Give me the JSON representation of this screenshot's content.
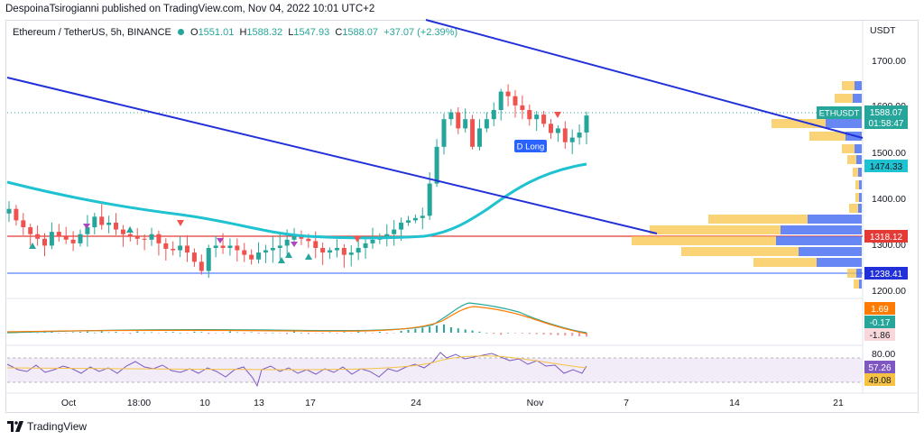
{
  "header": {
    "publisher_line": "DespoinaTsirogianni published on TradingView.com, Nov 04, 2022 10:01 UTC+2"
  },
  "legend": {
    "symbol": "Ethereum / TetherUS, 5h, BINANCE",
    "open_label": "O",
    "open": "1551.01",
    "high_label": "H",
    "high": "1588.32",
    "low_label": "L",
    "low": "1547.93",
    "close_label": "C",
    "close": "1588.07",
    "change": "+37.07 (+2.39%)"
  },
  "price_axis": {
    "currency": "USDT",
    "ticks": [
      "1700.00",
      "1600.00",
      "1500.00",
      "1400.00",
      "1300.00",
      "1200.00"
    ]
  },
  "price_badges": {
    "symbol_tag": "ETHUSDT",
    "last_price": "1588.07",
    "countdown": "01:58:47",
    "ma_value": "1474.33",
    "red_level": "1318.12",
    "blue_level": "1238.41"
  },
  "macd_badges": [
    "1.69",
    "-0.17",
    "-1.86"
  ],
  "rsi_badges": {
    "level": "80.00",
    "rsi": "57.26",
    "rsi_ma": "49.08"
  },
  "time_axis": [
    "Oct",
    "18:00",
    "10",
    "13",
    "17",
    "24",
    "Nov",
    "7",
    "14",
    "21"
  ],
  "annotation": "D Long",
  "footer": {
    "brand": "TradingView"
  },
  "colors": {
    "up": "#26a69a",
    "down": "#ef5350",
    "ma": "#1ec2d1",
    "trendline": "#2130d9",
    "red_level": "#e53935",
    "blue_level": "#2962ff",
    "macd": "#26a69a",
    "signal": "#ff7a00",
    "rsi": "#7e57c2",
    "rsi_ma": "#f5c242",
    "vp_up": "#4b72f2",
    "vp_down": "#f9c44a"
  },
  "chart_data": {
    "type": "candlestick",
    "symbol": "Ethereum / TetherUS",
    "interval": "5h",
    "ylim": [
      1185,
      1745
    ],
    "x": [
      "Oct",
      "18:00",
      "10",
      "13",
      "17",
      "24",
      "Nov",
      "7",
      "14",
      "21"
    ],
    "close_series": [
      1385,
      1360,
      1345,
      1330,
      1320,
      1305,
      1335,
      1325,
      1318,
      1310,
      1330,
      1345,
      1368,
      1350,
      1355,
      1340,
      1330,
      1325,
      1320,
      1318,
      1330,
      1310,
      1298,
      1295,
      1305,
      1290,
      1270,
      1250,
      1300,
      1305,
      1300,
      1305,
      1295,
      1285,
      1275,
      1290,
      1295,
      1300,
      1305,
      1318,
      1325,
      1320,
      1315,
      1300,
      1290,
      1295,
      1300,
      1285,
      1290,
      1300,
      1310,
      1318,
      1325,
      1330,
      1340,
      1355,
      1360,
      1365,
      1370,
      1440,
      1520,
      1580,
      1595,
      1560,
      1580,
      1520,
      1560,
      1580,
      1600,
      1640,
      1630,
      1610,
      1600,
      1580,
      1590,
      1570,
      1550,
      1560,
      1530,
      1540,
      1551,
      1588
    ],
    "ma_line": {
      "value": 1474.33
    },
    "levels": [
      {
        "label": "red",
        "value": 1318.12
      },
      {
        "label": "blue",
        "value": 1238.41
      }
    ],
    "annotation": "D Long"
  }
}
